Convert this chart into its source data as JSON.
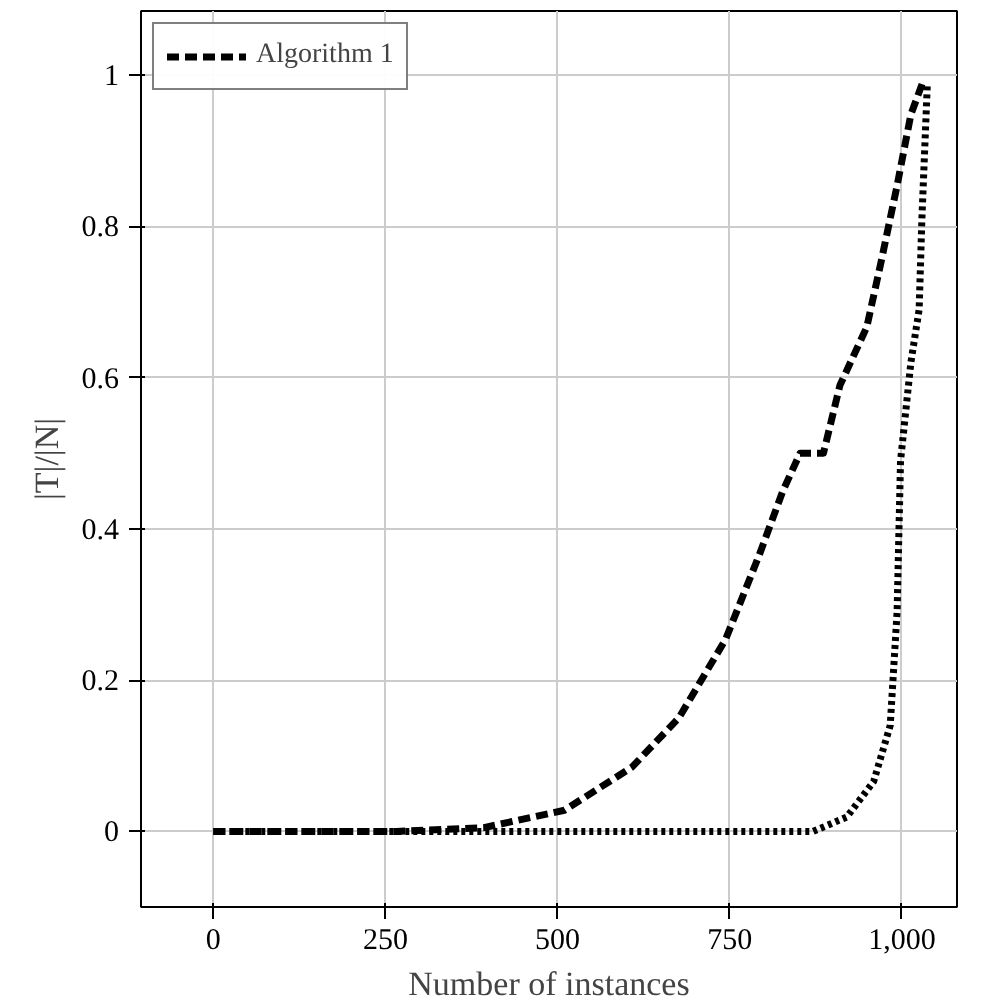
{
  "chart_data": {
    "type": "line",
    "xlabel": "Number of instances",
    "ylabel": "|T|/|N|",
    "xlim": [
      -105,
      1080
    ],
    "ylim": [
      -0.1,
      1.085
    ],
    "xticks": [
      0,
      250,
      500,
      {
        "value": 750,
        "label": "750"
      },
      {
        "value": 1000,
        "label": "1,000"
      }
    ],
    "yticks": [
      0,
      0.2,
      0.4,
      0.6,
      0.8,
      1
    ],
    "grid": true,
    "legend": "top left",
    "series": [
      {
        "color": "#000000",
        "line_style": "dotted",
        "x": [
          0,
          871,
          920,
          959,
          983,
          993,
          998,
          1013,
          1025,
          1029,
          1037
        ],
        "values": [
          0,
          0,
          0.019,
          0.066,
          0.14,
          0.29,
          0.49,
          0.62,
          0.69,
          0.81,
          0.99
        ]
      },
      {
        "name": "Algorithm 1",
        "color": "#000000",
        "line_style": "dashed",
        "x": [
          0,
          266,
          393,
          510,
          608,
          676,
          744,
          793,
          827,
          852,
          886,
          910,
          949,
          969,
          993,
          1013,
          1032
        ],
        "values": [
          0,
          0,
          0.005,
          0.028,
          0.085,
          0.15,
          0.254,
          0.366,
          0.45,
          0.5,
          0.5,
          0.59,
          0.667,
          0.75,
          0.854,
          0.948,
          0.995
        ]
      }
    ]
  }
}
